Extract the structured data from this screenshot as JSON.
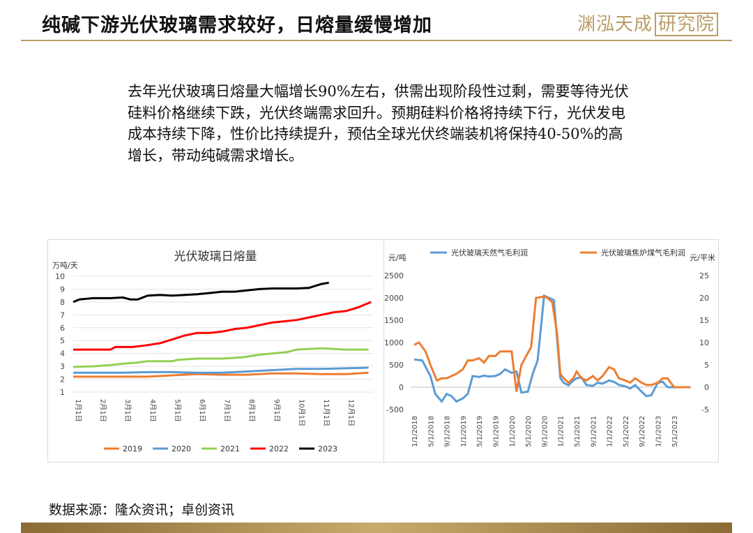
{
  "header": {
    "title": "纯碱下游光伏玻璃需求较好，日熔量缓慢增加",
    "brand_name": "渊泓天成",
    "brand_suffix": "研究院"
  },
  "summary": "去年光伏玻璃日熔量大幅增长90%左右，供需出现阶段性过剩，需要等待光伏硅料价格继续下跌，光伏终端需求回升。预期硅料价格将持续下行，光伏发电成本持续下降，性价比持续提升，预估全球光伏终端装机将保持40-50%的高增长，带动纯碱需求增长。",
  "source": "数据来源：隆众资讯；卓创资讯",
  "colors": {
    "accent_gold": "#b99d66",
    "orange": "#ed7d31",
    "blue": "#5b9bd5",
    "green": "#92d050",
    "red": "#ff0000",
    "black": "#000000"
  },
  "chart_data": [
    {
      "type": "line",
      "title": "光伏玻璃日熔量",
      "ylabel": "万吨/天",
      "ylim": [
        1,
        10
      ],
      "yticks": [
        1,
        2,
        3,
        4,
        5,
        6,
        7,
        8,
        9,
        10
      ],
      "xticks": [
        "1月1日",
        "2月1日",
        "3月1日",
        "4月1日",
        "5月1日",
        "6月1日",
        "7月1日",
        "8月1日",
        "9月1日",
        "10月1日",
        "11月1日",
        "12月1日"
      ],
      "grid": true,
      "legend_position": "bottom",
      "series": [
        {
          "name": "2019",
          "color": "#ed7d31",
          "x": [
            0,
            3,
            4,
            5,
            6,
            7,
            8,
            9,
            10,
            11,
            11.9
          ],
          "y": [
            2.2,
            2.2,
            2.3,
            2.4,
            2.35,
            2.35,
            2.45,
            2.45,
            2.4,
            2.4,
            2.5
          ]
        },
        {
          "name": "2020",
          "color": "#5b9bd5",
          "x": [
            0,
            2,
            3,
            4,
            5,
            6,
            7,
            8,
            9,
            10,
            11,
            11.9
          ],
          "y": [
            2.5,
            2.5,
            2.55,
            2.55,
            2.5,
            2.5,
            2.6,
            2.7,
            2.8,
            2.8,
            2.85,
            2.9
          ]
        },
        {
          "name": "2021",
          "color": "#92d050",
          "x": [
            0,
            0.8,
            1.5,
            2,
            2.6,
            3,
            4,
            4.2,
            5,
            6,
            6.8,
            7.5,
            8,
            8.6,
            9,
            10,
            11,
            11.9
          ],
          "y": [
            2.95,
            3.0,
            3.1,
            3.2,
            3.3,
            3.4,
            3.4,
            3.5,
            3.6,
            3.6,
            3.7,
            3.9,
            4.0,
            4.1,
            4.3,
            4.4,
            4.3,
            4.3
          ]
        },
        {
          "name": "2022",
          "color": "#ff0000",
          "x": [
            0,
            0.7,
            1.5,
            1.7,
            2.4,
            3,
            3.5,
            4,
            4.5,
            5,
            5.5,
            6,
            6.5,
            7,
            7.5,
            8,
            8.5,
            9,
            9.5,
            10,
            10.5,
            11,
            11.5,
            12
          ],
          "y": [
            4.3,
            4.3,
            4.3,
            4.5,
            4.5,
            4.65,
            4.8,
            5.1,
            5.4,
            5.6,
            5.6,
            5.7,
            5.9,
            6.0,
            6.2,
            6.4,
            6.5,
            6.6,
            6.8,
            7.0,
            7.2,
            7.3,
            7.6,
            8.0
          ]
        },
        {
          "name": "2023",
          "color": "#000000",
          "x": [
            0,
            0.25,
            0.8,
            1.5,
            2,
            2.3,
            2.6,
            3,
            3.5,
            4,
            4.5,
            5,
            5.5,
            6,
            6.5,
            7,
            7.5,
            8,
            8.5,
            9,
            9.5,
            10,
            10.3
          ],
          "y": [
            8.0,
            8.2,
            8.3,
            8.3,
            8.35,
            8.2,
            8.2,
            8.5,
            8.55,
            8.5,
            8.55,
            8.6,
            8.7,
            8.8,
            8.8,
            8.9,
            9.0,
            9.05,
            9.05,
            9.05,
            9.1,
            9.4,
            9.5
          ]
        }
      ]
    },
    {
      "type": "line",
      "ylabel_left": "元/吨",
      "ylabel_right": "元/平米",
      "ylim_left": [
        -500,
        2500
      ],
      "ylim_right": [
        -5,
        25
      ],
      "yticks_left": [
        -500,
        0,
        500,
        1000,
        1500,
        2000,
        2500
      ],
      "yticks_right": [
        -5,
        0,
        5,
        10,
        15,
        20,
        25
      ],
      "xticks": [
        "1/1/2018",
        "5/1/2018",
        "9/1/2018",
        "1/1/2019",
        "5/1/2019",
        "9/1/2019",
        "1/1/2020",
        "5/1/2020",
        "9/1/2020",
        "1/1/2021",
        "5/1/2021",
        "9/1/2021",
        "1/1/2022",
        "5/1/2022",
        "9/1/2022",
        "1/1/2023",
        "5/1/2023"
      ],
      "grid": false,
      "legend_position": "top",
      "series": [
        {
          "name": "光伏玻璃天然气毛利润",
          "color": "#5b9bd5",
          "axis": "left",
          "x": [
            0,
            0.5,
            1,
            1.3,
            1.7,
            2,
            2.3,
            2.6,
            3,
            3.3,
            3.6,
            4,
            4.3,
            4.6,
            5,
            5.3,
            5.6,
            6,
            6.3,
            6.6,
            7,
            7.3,
            7.6,
            8,
            8.3,
            8.6,
            9,
            9.2,
            9.5,
            9.8,
            10,
            10.3,
            10.6,
            11,
            11.3,
            11.6,
            12,
            12.3,
            12.6,
            13,
            13.3,
            13.6,
            14,
            14.3,
            14.6,
            15,
            15.3,
            15.6,
            16,
            16.3,
            16.6,
            17
          ],
          "y": [
            620,
            600,
            250,
            -150,
            -320,
            -150,
            -200,
            -320,
            -250,
            -150,
            250,
            230,
            260,
            240,
            250,
            300,
            400,
            320,
            350,
            -120,
            -100,
            300,
            600,
            2050,
            2000,
            1950,
            200,
            100,
            40,
            150,
            200,
            220,
            50,
            30,
            100,
            80,
            150,
            120,
            50,
            20,
            -30,
            50,
            -100,
            -200,
            -180,
            100,
            120,
            0,
            0,
            0,
            0,
            0
          ]
        },
        {
          "name": "光伏玻璃焦炉煤气毛利润",
          "color": "#ed7d31",
          "axis": "right",
          "x": [
            0,
            0.3,
            0.7,
            1,
            1.4,
            1.7,
            2,
            2.3,
            2.6,
            3,
            3.3,
            3.6,
            4,
            4.3,
            4.6,
            5,
            5.3,
            5.6,
            6,
            6.3,
            6.6,
            6.9,
            7.2,
            7.5,
            8,
            8.2,
            8.5,
            8.8,
            9,
            9.2,
            9.5,
            9.8,
            10,
            10.3,
            10.6,
            11,
            11.3,
            11.6,
            12,
            12.3,
            12.6,
            13,
            13.3,
            13.6,
            14,
            14.3,
            14.6,
            15,
            15.3,
            15.6,
            16,
            16.3,
            16.6,
            17
          ],
          "y": [
            9.5,
            10,
            8,
            5,
            1.5,
            2,
            2,
            2.5,
            3,
            4,
            6,
            6,
            6.5,
            5.5,
            7,
            7,
            8,
            8,
            8,
            -1,
            5,
            7,
            9,
            20,
            20.3,
            20,
            19,
            12,
            3,
            2,
            1,
            2,
            3.5,
            2,
            1.5,
            2.5,
            1.5,
            2.5,
            4.5,
            4,
            2,
            1.5,
            1,
            2,
            1,
            0.5,
            0.5,
            1,
            2,
            2,
            0,
            0,
            0,
            0
          ]
        }
      ]
    }
  ]
}
